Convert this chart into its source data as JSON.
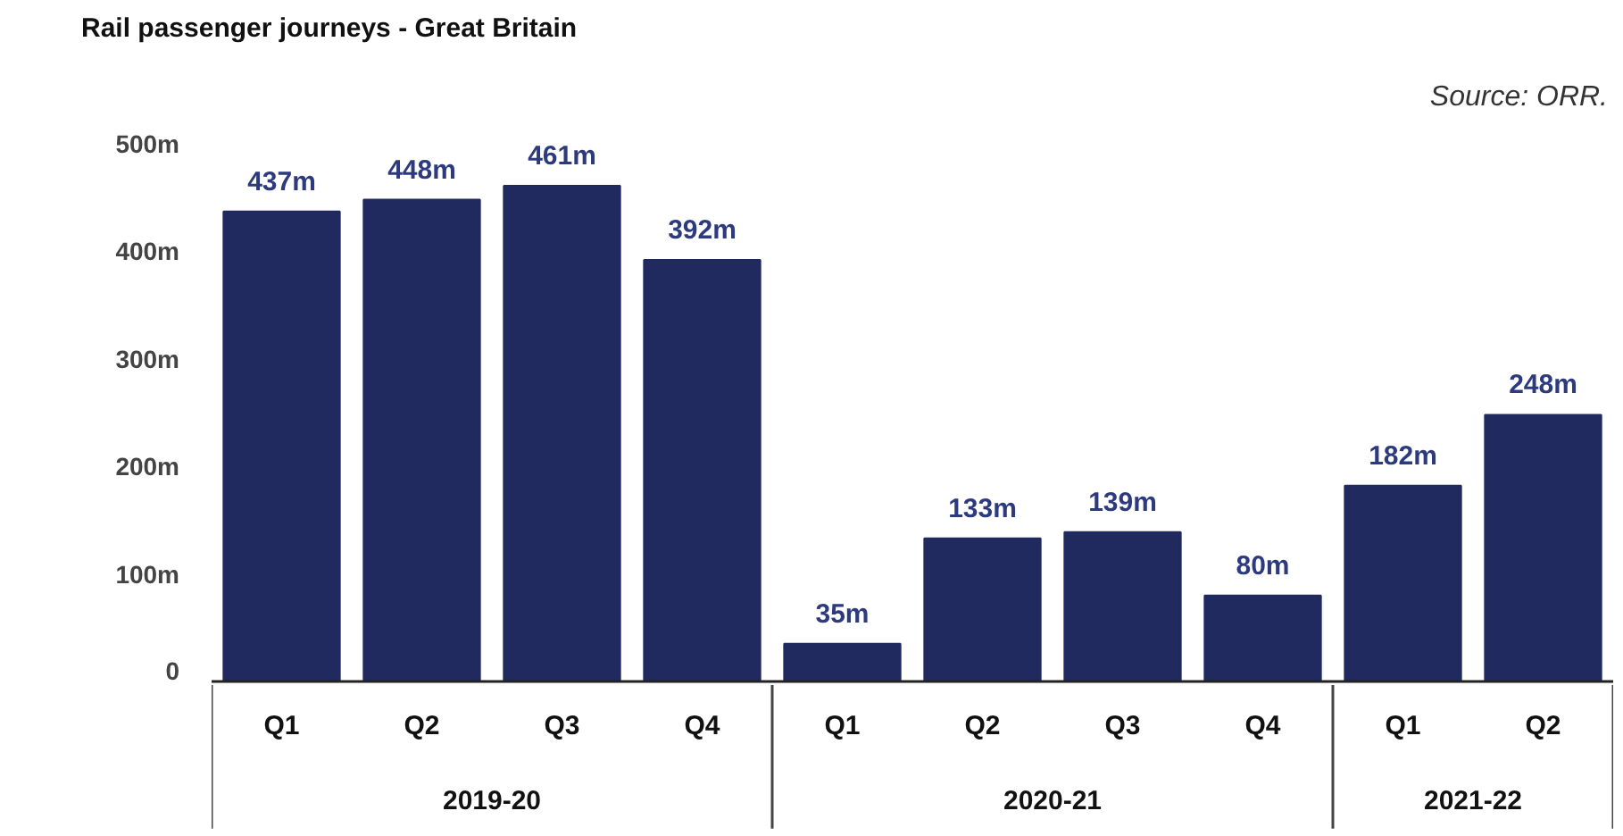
{
  "chart_data": {
    "type": "bar",
    "title": "Rail passenger journeys - Great Britain",
    "categories": [
      "Q1",
      "Q2",
      "Q3",
      "Q4",
      "Q1",
      "Q2",
      "Q3",
      "Q4",
      "Q1",
      "Q2"
    ],
    "values": [
      437,
      448,
      461,
      392,
      35,
      133,
      139,
      80,
      182,
      248
    ],
    "value_labels": [
      "437m",
      "448m",
      "461m",
      "392m",
      "35m",
      "133m",
      "139m",
      "80m",
      "182m",
      "248m"
    ],
    "color": "#202a5e",
    "ylim": [
      0,
      500
    ],
    "yticks": [
      0,
      {
        "value": 100,
        "label": "100m"
      },
      {
        "value": 200,
        "label": "200m"
      },
      {
        "value": 300,
        "label": "300m"
      },
      {
        "value": 400,
        "label": "400m"
      },
      {
        "value": 500,
        "label": "500m"
      }
    ],
    "annotations": [
      "2019-20",
      "2020-21",
      "2021-22",
      "Source: ORR."
    ]
  }
}
